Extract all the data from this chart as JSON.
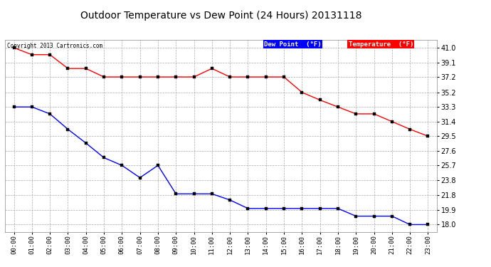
{
  "title": "Outdoor Temperature vs Dew Point (24 Hours) 20131118",
  "copyright": "Copyright 2013 Cartronics.com",
  "x_labels": [
    "00:00",
    "01:00",
    "02:00",
    "03:00",
    "04:00",
    "05:00",
    "06:00",
    "07:00",
    "08:00",
    "09:00",
    "10:00",
    "11:00",
    "12:00",
    "13:00",
    "14:00",
    "15:00",
    "16:00",
    "17:00",
    "18:00",
    "19:00",
    "20:00",
    "21:00",
    "22:00",
    "23:00"
  ],
  "temperature": [
    41.0,
    40.1,
    40.1,
    38.3,
    38.3,
    37.2,
    37.2,
    37.2,
    37.2,
    37.2,
    37.2,
    38.3,
    37.2,
    37.2,
    37.2,
    37.2,
    35.2,
    34.2,
    33.3,
    32.4,
    32.4,
    31.4,
    30.4,
    29.5
  ],
  "dew_point": [
    33.3,
    33.3,
    32.4,
    30.4,
    28.6,
    26.7,
    25.7,
    24.1,
    25.7,
    22.0,
    22.0,
    22.0,
    21.2,
    20.1,
    20.1,
    20.1,
    20.1,
    20.1,
    20.1,
    19.1,
    19.1,
    19.1,
    18.0,
    18.0
  ],
  "temp_color": "#ff0000",
  "dew_color": "#0000ff",
  "bg_color": "#ffffff",
  "plot_bg_color": "#ffffff",
  "grid_color": "#aaaaaa",
  "ylim_min": 17.0,
  "ylim_max": 42.0,
  "yticks": [
    18.0,
    19.9,
    21.8,
    23.8,
    25.7,
    27.6,
    29.5,
    31.4,
    33.3,
    35.2,
    37.2,
    39.1,
    41.0
  ],
  "legend_dew_bg": "#0000ff",
  "legend_temp_bg": "#ff0000",
  "legend_text_color": "#ffffff"
}
